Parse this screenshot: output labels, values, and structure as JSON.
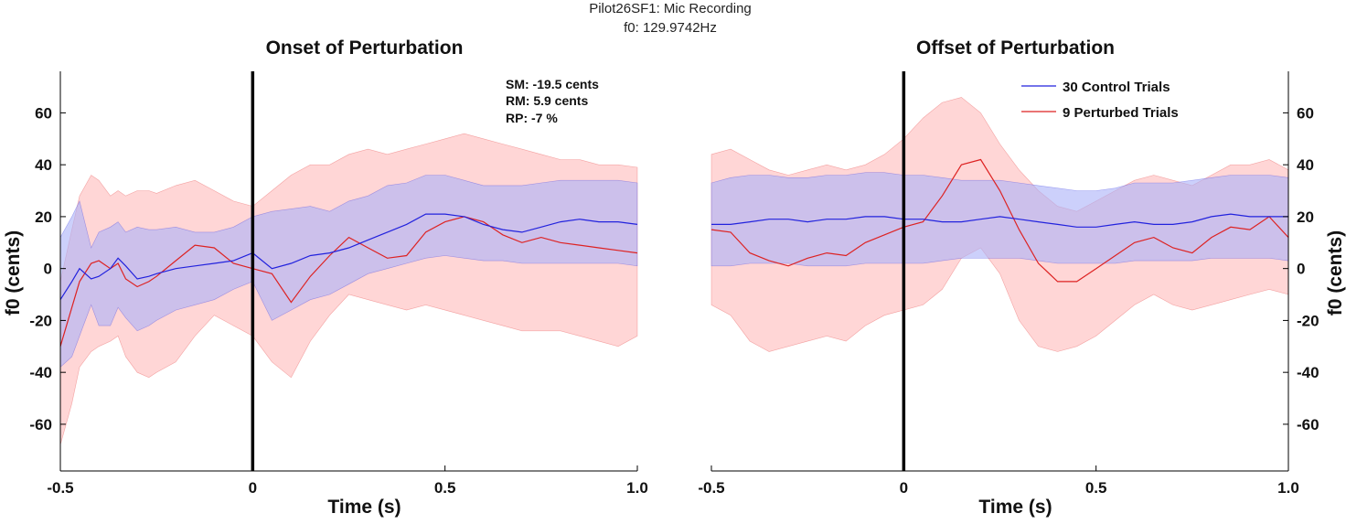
{
  "figure": {
    "suptitle_line1": "Pilot26SF1: Mic Recording",
    "suptitle_line2": "f0: 129.9742Hz"
  },
  "colors": {
    "control": "#2222dd",
    "control_band": "#aab0f8",
    "perturbed": "#dd2222",
    "perturbed_band": "#ffb4b4",
    "marker": "#000000"
  },
  "chart_data": [
    {
      "type": "line",
      "title": "Onset of Perturbation",
      "xlabel": "Time (s)",
      "ylabel": "f0 (cents)",
      "xlim": [
        -0.5,
        1.0
      ],
      "ylim": [
        -78,
        76
      ],
      "x_ticks": [
        "-0.5",
        "0",
        "0.5",
        "1.0"
      ],
      "y_ticks": [
        "60",
        "40",
        "20",
        "0",
        "-20",
        "-40",
        "-60"
      ],
      "y_tick_values": [
        60,
        40,
        20,
        0,
        -20,
        -40,
        -60
      ],
      "x_tick_values": [
        -0.5,
        0,
        0.5,
        1.0
      ],
      "grid": false,
      "vertical_marker_x": 0,
      "annotations": {
        "sm": "SM: -19.5 cents",
        "rm": "RM: 5.9 cents",
        "rp": "RP: -7 %"
      },
      "series": [
        {
          "name": "30 Control Trials",
          "x": [
            -0.5,
            -0.47,
            -0.45,
            -0.42,
            -0.4,
            -0.37,
            -0.35,
            -0.33,
            -0.3,
            -0.27,
            -0.25,
            -0.2,
            -0.15,
            -0.1,
            -0.05,
            0,
            0.05,
            0.1,
            0.15,
            0.2,
            0.25,
            0.3,
            0.35,
            0.4,
            0.45,
            0.5,
            0.55,
            0.6,
            0.65,
            0.7,
            0.75,
            0.8,
            0.85,
            0.9,
            0.95,
            1.0
          ],
          "values": [
            -12,
            -5,
            0,
            -4,
            -3,
            0,
            4,
            1,
            -4,
            -3,
            -2,
            0,
            1,
            2,
            3,
            6,
            0,
            2,
            5,
            6,
            8,
            11,
            14,
            17,
            21,
            21,
            20,
            17,
            15,
            14,
            16,
            18,
            19,
            18,
            18,
            17
          ],
          "upper": [
            12,
            20,
            26,
            8,
            14,
            16,
            18,
            14,
            16,
            15,
            15,
            16,
            14,
            14,
            16,
            20,
            22,
            23,
            24,
            22,
            26,
            28,
            32,
            33,
            36,
            36,
            34,
            32,
            32,
            32,
            33,
            34,
            34,
            34,
            34,
            33
          ],
          "lower": [
            -38,
            -34,
            -26,
            -14,
            -22,
            -22,
            -15,
            -19,
            -24,
            -22,
            -20,
            -16,
            -14,
            -12,
            -8,
            -5,
            -20,
            -16,
            -12,
            -10,
            -6,
            -2,
            0,
            2,
            4,
            5,
            4,
            3,
            3,
            2,
            2,
            2,
            2,
            2,
            2,
            1
          ]
        },
        {
          "name": "9 Perturbed Trials",
          "x": [
            -0.5,
            -0.47,
            -0.45,
            -0.42,
            -0.4,
            -0.37,
            -0.35,
            -0.33,
            -0.3,
            -0.27,
            -0.25,
            -0.2,
            -0.15,
            -0.1,
            -0.05,
            0,
            0.05,
            0.1,
            0.15,
            0.2,
            0.25,
            0.3,
            0.35,
            0.4,
            0.45,
            0.5,
            0.55,
            0.6,
            0.65,
            0.7,
            0.75,
            0.8,
            0.85,
            0.9,
            0.95,
            1.0
          ],
          "values": [
            -30,
            -15,
            -5,
            2,
            3,
            0,
            2,
            -4,
            -7,
            -5,
            -3,
            3,
            9,
            8,
            2,
            0,
            -2,
            -13,
            -3,
            5,
            12,
            8,
            4,
            5,
            14,
            18,
            20,
            18,
            13,
            10,
            12,
            10,
            9,
            8,
            7,
            6
          ],
          "upper": [
            -5,
            15,
            28,
            36,
            34,
            28,
            30,
            28,
            30,
            30,
            29,
            32,
            34,
            30,
            26,
            24,
            30,
            36,
            40,
            40,
            44,
            46,
            44,
            46,
            48,
            50,
            52,
            50,
            48,
            46,
            44,
            42,
            42,
            40,
            40,
            39
          ],
          "lower": [
            -68,
            -52,
            -38,
            -32,
            -30,
            -28,
            -26,
            -34,
            -40,
            -42,
            -40,
            -36,
            -26,
            -18,
            -22,
            -26,
            -36,
            -42,
            -28,
            -18,
            -10,
            -12,
            -14,
            -16,
            -14,
            -16,
            -18,
            -20,
            -22,
            -24,
            -24,
            -24,
            -26,
            -28,
            -30,
            -26
          ]
        }
      ]
    },
    {
      "type": "line",
      "title": "Offset of Perturbation",
      "xlabel": "Time (s)",
      "ylabel": "f0 (cents)",
      "xlim": [
        -0.5,
        1.0
      ],
      "ylim": [
        -78,
        76
      ],
      "x_ticks": [
        "-0.5",
        "0",
        "0.5",
        "1.0"
      ],
      "y_ticks": [
        "60",
        "40",
        "20",
        "0",
        "-20",
        "-40",
        "-60"
      ],
      "y_tick_values": [
        60,
        40,
        20,
        0,
        -20,
        -40,
        -60
      ],
      "x_tick_values": [
        -0.5,
        0,
        0.5,
        1.0
      ],
      "grid": false,
      "vertical_marker_x": 0,
      "legend_position": "top-right",
      "series": [
        {
          "name": "30 Control Trials",
          "x": [
            -0.5,
            -0.45,
            -0.4,
            -0.35,
            -0.3,
            -0.25,
            -0.2,
            -0.15,
            -0.1,
            -0.05,
            0,
            0.05,
            0.1,
            0.15,
            0.2,
            0.25,
            0.3,
            0.35,
            0.4,
            0.45,
            0.5,
            0.55,
            0.6,
            0.65,
            0.7,
            0.75,
            0.8,
            0.85,
            0.9,
            0.95,
            1.0
          ],
          "values": [
            17,
            17,
            18,
            19,
            19,
            18,
            19,
            19,
            20,
            20,
            19,
            19,
            18,
            18,
            19,
            20,
            19,
            18,
            17,
            16,
            16,
            17,
            18,
            17,
            17,
            18,
            20,
            21,
            20,
            20,
            20
          ],
          "upper": [
            33,
            35,
            36,
            36,
            35,
            35,
            36,
            36,
            37,
            37,
            36,
            36,
            35,
            34,
            34,
            34,
            33,
            32,
            31,
            30,
            30,
            31,
            33,
            33,
            33,
            34,
            35,
            36,
            36,
            36,
            35
          ],
          "lower": [
            1,
            1,
            2,
            2,
            2,
            1,
            1,
            1,
            2,
            2,
            2,
            2,
            3,
            4,
            4,
            4,
            4,
            3,
            2,
            2,
            2,
            2,
            3,
            3,
            3,
            3,
            4,
            4,
            4,
            4,
            3
          ]
        },
        {
          "name": "9 Perturbed Trials",
          "x": [
            -0.5,
            -0.45,
            -0.4,
            -0.35,
            -0.3,
            -0.25,
            -0.2,
            -0.15,
            -0.1,
            -0.05,
            0,
            0.05,
            0.1,
            0.15,
            0.2,
            0.25,
            0.3,
            0.35,
            0.4,
            0.45,
            0.5,
            0.55,
            0.6,
            0.65,
            0.7,
            0.75,
            0.8,
            0.85,
            0.9,
            0.95,
            1.0
          ],
          "values": [
            15,
            14,
            6,
            3,
            1,
            4,
            6,
            5,
            10,
            13,
            16,
            18,
            28,
            40,
            42,
            30,
            15,
            2,
            -5,
            -5,
            0,
            5,
            10,
            12,
            8,
            6,
            12,
            16,
            15,
            20,
            12
          ],
          "upper": [
            44,
            46,
            42,
            38,
            36,
            38,
            40,
            38,
            40,
            44,
            50,
            58,
            64,
            66,
            60,
            48,
            38,
            30,
            24,
            22,
            26,
            30,
            34,
            36,
            34,
            32,
            36,
            40,
            40,
            42,
            38
          ],
          "lower": [
            -14,
            -18,
            -28,
            -32,
            -30,
            -28,
            -26,
            -28,
            -22,
            -18,
            -16,
            -14,
            -8,
            4,
            8,
            -2,
            -20,
            -30,
            -32,
            -30,
            -26,
            -20,
            -14,
            -10,
            -14,
            -16,
            -14,
            -12,
            -10,
            -8,
            -10
          ]
        }
      ]
    }
  ]
}
